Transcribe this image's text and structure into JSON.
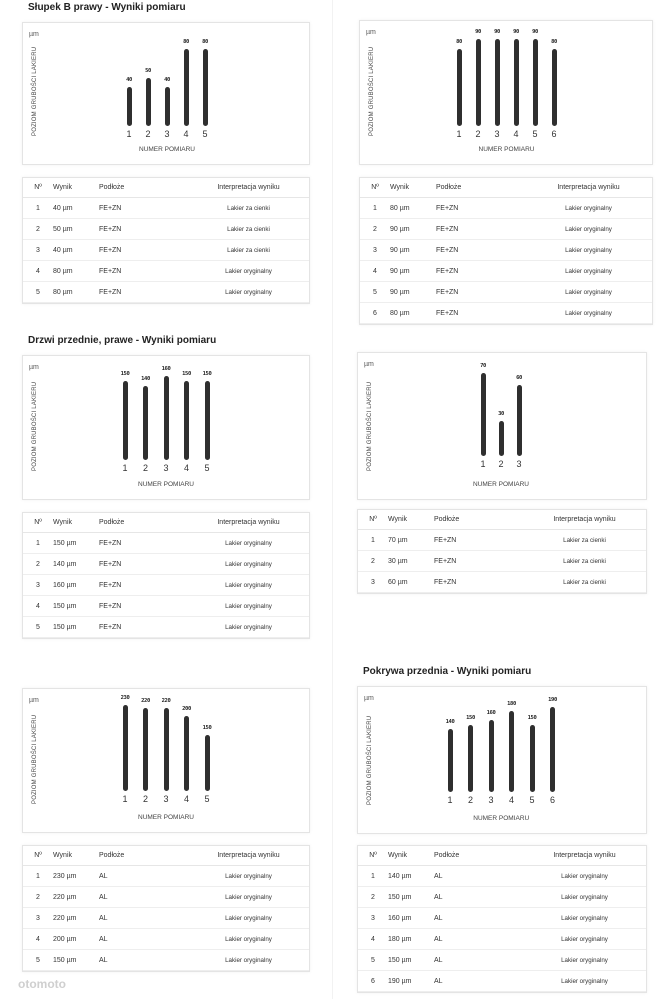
{
  "common": {
    "unit": "µm",
    "y_label": "POZIOM GRUBOŚCI LAKIERU",
    "x_label": "NUMER POMIARU",
    "col_no": "Nº",
    "col_result": "Wynik",
    "col_substrate": "Podłoże",
    "col_interpretation": "Interpretacja wyniku"
  },
  "panels": [
    {
      "title": "Słupek B prawy - Wyniki pomiaru",
      "chart_data": {
        "type": "bar",
        "categories": [
          "1",
          "2",
          "3",
          "4",
          "5"
        ],
        "values": [
          40,
          50,
          40,
          80,
          80
        ],
        "ylabel": "POZIOM GRUBOŚCI LAKIERU",
        "xlabel": "NUMER POMIARU"
      },
      "rows": [
        {
          "no": "1",
          "result": "40 µm",
          "substrate": "FE+ZN",
          "interp": "Lakier za cienki"
        },
        {
          "no": "2",
          "result": "50 µm",
          "substrate": "FE+ZN",
          "interp": "Lakier za cienki"
        },
        {
          "no": "3",
          "result": "40 µm",
          "substrate": "FE+ZN",
          "interp": "Lakier za cienki"
        },
        {
          "no": "4",
          "result": "80 µm",
          "substrate": "FE+ZN",
          "interp": "Lakier oryginalny"
        },
        {
          "no": "5",
          "result": "80 µm",
          "substrate": "FE+ZN",
          "interp": "Lakier oryginalny"
        }
      ]
    },
    {
      "title": "",
      "chart_data": {
        "type": "bar",
        "categories": [
          "1",
          "2",
          "3",
          "4",
          "5",
          "6"
        ],
        "values": [
          80,
          90,
          90,
          90,
          90,
          80
        ],
        "ylabel": "POZIOM GRUBOŚCI LAKIERU",
        "xlabel": "NUMER POMIARU"
      },
      "rows": [
        {
          "no": "1",
          "result": "80 µm",
          "substrate": "FE+ZN",
          "interp": "Lakier oryginalny"
        },
        {
          "no": "2",
          "result": "90 µm",
          "substrate": "FE+ZN",
          "interp": "Lakier oryginalny"
        },
        {
          "no": "3",
          "result": "90 µm",
          "substrate": "FE+ZN",
          "interp": "Lakier oryginalny"
        },
        {
          "no": "4",
          "result": "90 µm",
          "substrate": "FE+ZN",
          "interp": "Lakier oryginalny"
        },
        {
          "no": "5",
          "result": "90 µm",
          "substrate": "FE+ZN",
          "interp": "Lakier oryginalny"
        },
        {
          "no": "6",
          "result": "80 µm",
          "substrate": "FE+ZN",
          "interp": "Lakier oryginalny"
        }
      ]
    },
    {
      "title": "Drzwi przednie, prawe - Wyniki pomiaru",
      "chart_data": {
        "type": "bar",
        "categories": [
          "1",
          "2",
          "3",
          "4",
          "5"
        ],
        "values": [
          150,
          140,
          160,
          150,
          150
        ],
        "ylabel": "POZIOM GRUBOŚCI LAKIERU",
        "xlabel": "NUMER POMIARU"
      },
      "rows": [
        {
          "no": "1",
          "result": "150 µm",
          "substrate": "FE+ZN",
          "interp": "Lakier oryginalny"
        },
        {
          "no": "2",
          "result": "140 µm",
          "substrate": "FE+ZN",
          "interp": "Lakier oryginalny"
        },
        {
          "no": "3",
          "result": "160 µm",
          "substrate": "FE+ZN",
          "interp": "Lakier oryginalny"
        },
        {
          "no": "4",
          "result": "150 µm",
          "substrate": "FE+ZN",
          "interp": "Lakier oryginalny"
        },
        {
          "no": "5",
          "result": "150 µm",
          "substrate": "FE+ZN",
          "interp": "Lakier oryginalny"
        }
      ]
    },
    {
      "title": "",
      "chart_data": {
        "type": "bar",
        "categories": [
          "1",
          "2",
          "3"
        ],
        "values": [
          70,
          30,
          60
        ],
        "ylabel": "POZIOM GRUBOŚCI LAKIERU",
        "xlabel": "NUMER POMIARU"
      },
      "rows": [
        {
          "no": "1",
          "result": "70 µm",
          "substrate": "FE+ZN",
          "interp": "Lakier za cienki"
        },
        {
          "no": "2",
          "result": "30 µm",
          "substrate": "FE+ZN",
          "interp": "Lakier za cienki"
        },
        {
          "no": "3",
          "result": "60 µm",
          "substrate": "FE+ZN",
          "interp": "Lakier za cienki"
        }
      ]
    },
    {
      "title": "",
      "chart_data": {
        "type": "bar",
        "categories": [
          "1",
          "2",
          "3",
          "4",
          "5"
        ],
        "values": [
          230,
          220,
          220,
          200,
          150
        ],
        "ylabel": "POZIOM GRUBOŚCI LAKIERU",
        "xlabel": "NUMER POMIARU"
      },
      "rows": [
        {
          "no": "1",
          "result": "230 µm",
          "substrate": "AL",
          "interp": "Lakier oryginalny"
        },
        {
          "no": "2",
          "result": "220 µm",
          "substrate": "AL",
          "interp": "Lakier oryginalny"
        },
        {
          "no": "3",
          "result": "220 µm",
          "substrate": "AL",
          "interp": "Lakier oryginalny"
        },
        {
          "no": "4",
          "result": "200 µm",
          "substrate": "AL",
          "interp": "Lakier oryginalny"
        },
        {
          "no": "5",
          "result": "150 µm",
          "substrate": "AL",
          "interp": "Lakier oryginalny"
        }
      ]
    },
    {
      "title": "Pokrywa przednia - Wyniki pomiaru",
      "chart_data": {
        "type": "bar",
        "categories": [
          "1",
          "2",
          "3",
          "4",
          "5",
          "6"
        ],
        "values": [
          140,
          150,
          160,
          180,
          150,
          190
        ],
        "ylabel": "POZIOM GRUBOŚCI LAKIERU",
        "xlabel": "NUMER POMIARU"
      },
      "rows": [
        {
          "no": "1",
          "result": "140 µm",
          "substrate": "AL",
          "interp": "Lakier oryginalny"
        },
        {
          "no": "2",
          "result": "150 µm",
          "substrate": "AL",
          "interp": "Lakier oryginalny"
        },
        {
          "no": "3",
          "result": "160 µm",
          "substrate": "AL",
          "interp": "Lakier oryginalny"
        },
        {
          "no": "4",
          "result": "180 µm",
          "substrate": "AL",
          "interp": "Lakier oryginalny"
        },
        {
          "no": "5",
          "result": "150 µm",
          "substrate": "AL",
          "interp": "Lakier oryginalny"
        },
        {
          "no": "6",
          "result": "190 µm",
          "substrate": "AL",
          "interp": "Lakier oryginalny"
        }
      ]
    }
  ],
  "watermark": "otomoto"
}
